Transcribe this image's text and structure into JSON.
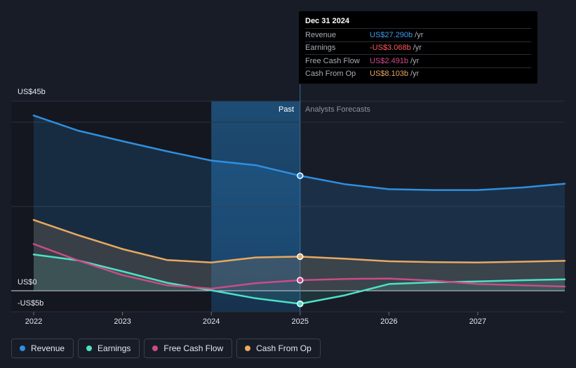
{
  "tooltip": {
    "date": "Dec 31 2024",
    "rows": [
      {
        "label": "Revenue",
        "value": "US$27.290b",
        "unit": "/yr",
        "color": "#3d9be9"
      },
      {
        "label": "Earnings",
        "value": "-US$3.068b",
        "unit": "/yr",
        "color": "#ff5a5a"
      },
      {
        "label": "Free Cash Flow",
        "value": "US$2.491b",
        "unit": "/yr",
        "color": "#d2498c"
      },
      {
        "label": "Cash From Op",
        "value": "US$8.103b",
        "unit": "/yr",
        "color": "#e8a961"
      }
    ]
  },
  "regions": {
    "past": "Past",
    "forecast": "Analysts Forecasts"
  },
  "legend": [
    {
      "label": "Revenue",
      "color": "#2f8fe0"
    },
    {
      "label": "Earnings",
      "color": "#4fe0c6"
    },
    {
      "label": "Free Cash Flow",
      "color": "#c94c87"
    },
    {
      "label": "Cash From Op",
      "color": "#e8a961"
    }
  ],
  "chart_data": {
    "type": "line",
    "y_tick_labels": [
      "US$45b",
      "US$0",
      "-US$5b"
    ],
    "ylim": [
      -5,
      45
    ],
    "xlim": [
      2022,
      2027.98
    ],
    "x_tick_labels": [
      "2022",
      "2023",
      "2024",
      "2025",
      "2026",
      "2027"
    ],
    "x_ticks": [
      2022,
      2023,
      2024,
      2025,
      2026,
      2027
    ],
    "past_end": 2025.0,
    "highlight_start": 2024.0,
    "series": [
      {
        "name": "Revenue",
        "color": "#2f8fe0",
        "fill": true,
        "points": [
          [
            2022,
            41.6
          ],
          [
            2022.5,
            38.0
          ],
          [
            2023,
            35.5
          ],
          [
            2023.5,
            33.1
          ],
          [
            2024,
            30.9
          ],
          [
            2024.5,
            29.8
          ],
          [
            2025,
            27.3
          ],
          [
            2025.5,
            25.3
          ],
          [
            2026,
            24.1
          ],
          [
            2026.5,
            23.9
          ],
          [
            2027,
            23.9
          ],
          [
            2027.5,
            24.5
          ],
          [
            2027.98,
            25.4
          ]
        ]
      },
      {
        "name": "Cash From Op",
        "color": "#e8a961",
        "fill": true,
        "points": [
          [
            2022,
            16.8
          ],
          [
            2022.5,
            13.2
          ],
          [
            2023,
            9.9
          ],
          [
            2023.5,
            7.3
          ],
          [
            2024,
            6.7
          ],
          [
            2024.5,
            7.9
          ],
          [
            2025,
            8.1
          ],
          [
            2025.5,
            7.6
          ],
          [
            2026,
            7.0
          ],
          [
            2026.5,
            6.8
          ],
          [
            2027,
            6.7
          ],
          [
            2027.5,
            6.9
          ],
          [
            2027.98,
            7.1
          ]
        ]
      },
      {
        "name": "Free Cash Flow",
        "color": "#c94c87",
        "fill": false,
        "points": [
          [
            2022,
            11.1
          ],
          [
            2022.5,
            7.2
          ],
          [
            2023,
            3.7
          ],
          [
            2023.5,
            1.3
          ],
          [
            2024,
            0.5
          ],
          [
            2024.5,
            1.8
          ],
          [
            2025,
            2.5
          ],
          [
            2025.5,
            2.8
          ],
          [
            2026,
            2.9
          ],
          [
            2026.5,
            2.4
          ],
          [
            2027,
            1.6
          ],
          [
            2027.5,
            1.3
          ],
          [
            2027.98,
            1.0
          ]
        ]
      },
      {
        "name": "Earnings",
        "color": "#4fe0c6",
        "fill": true,
        "points": [
          [
            2022,
            8.6
          ],
          [
            2022.5,
            7.2
          ],
          [
            2023,
            4.6
          ],
          [
            2023.5,
            1.9
          ],
          [
            2024,
            0.1
          ],
          [
            2024.5,
            -1.8
          ],
          [
            2025,
            -3.1
          ],
          [
            2025.5,
            -1.1
          ],
          [
            2026,
            1.6
          ],
          [
            2026.5,
            2.0
          ],
          [
            2027,
            2.2
          ],
          [
            2027.5,
            2.5
          ],
          [
            2027.98,
            2.7
          ]
        ]
      }
    ]
  }
}
